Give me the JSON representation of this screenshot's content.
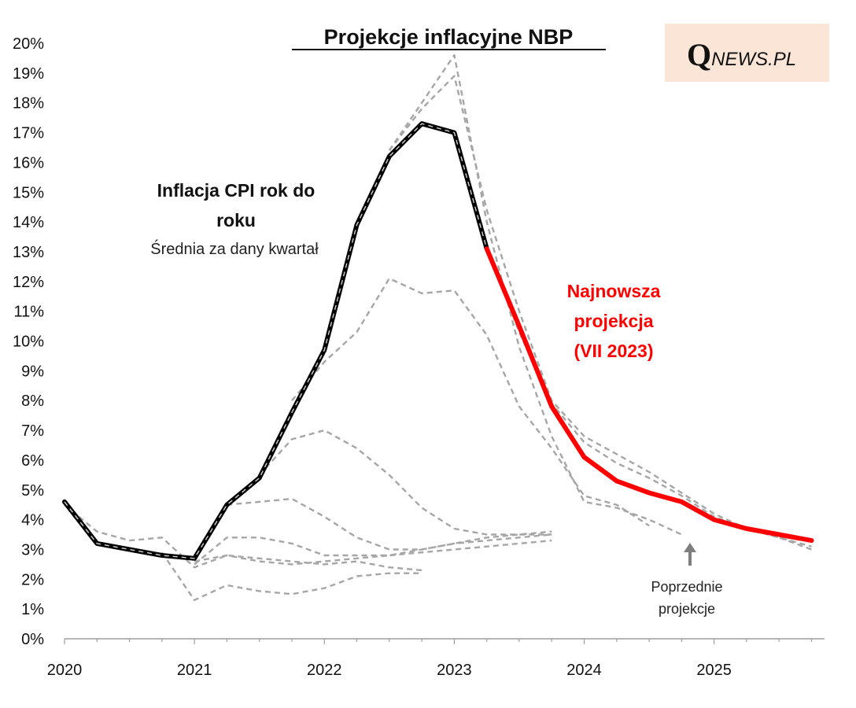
{
  "chart_data": {
    "type": "line",
    "title": "Projekcje inflacyjne NBP",
    "xlabel": "",
    "ylabel": "",
    "ylim": [
      0,
      20
    ],
    "xlim": [
      2020.0,
      2025.85
    ],
    "yticks": [
      "0%",
      "1%",
      "2%",
      "3%",
      "4%",
      "5%",
      "6%",
      "7%",
      "8%",
      "9%",
      "10%",
      "11%",
      "12%",
      "13%",
      "14%",
      "15%",
      "16%",
      "17%",
      "18%",
      "19%",
      "20%"
    ],
    "xticks": [
      {
        "label": "2020",
        "value": 2020
      },
      {
        "label": "2021",
        "value": 2021
      },
      {
        "label": "2022",
        "value": 2022
      },
      {
        "label": "2023",
        "value": 2023
      },
      {
        "label": "2024",
        "value": 2024
      },
      {
        "label": "2025",
        "value": 2025
      }
    ],
    "actual": {
      "name": "Inflacja CPI rok do roku",
      "x": [
        2020.0,
        2020.25,
        2020.5,
        2020.75,
        2021.0,
        2021.25,
        2021.5,
        2021.75,
        2022.0,
        2022.25,
        2022.5,
        2022.75,
        2023.0,
        2023.25
      ],
      "values": [
        4.6,
        3.2,
        3.0,
        2.8,
        2.7,
        4.5,
        5.4,
        7.6,
        9.7,
        13.9,
        16.2,
        17.3,
        17.0,
        13.1
      ]
    },
    "latest_projection": {
      "name": "Najnowsza projekcja (VII 2023)",
      "x": [
        2023.25,
        2023.5,
        2023.75,
        2024.0,
        2024.25,
        2024.5,
        2024.75,
        2025.0,
        2025.25,
        2025.5,
        2025.75
      ],
      "values": [
        13.1,
        10.5,
        7.8,
        6.1,
        5.3,
        4.9,
        4.6,
        4.0,
        3.7,
        3.5,
        3.3
      ]
    },
    "previous_projections": [
      {
        "x": [
          2020.0,
          2020.25,
          2020.5,
          2020.75,
          2021.0,
          2021.25,
          2021.5,
          2021.75,
          2022.0,
          2022.25,
          2022.5,
          2022.75
        ],
        "values": [
          4.5,
          3.6,
          3.3,
          3.4,
          2.4,
          2.8,
          2.7,
          2.6,
          2.5,
          2.6,
          2.4,
          2.3
        ]
      },
      {
        "x": [
          2020.75,
          2021.0,
          2021.25,
          2021.5,
          2021.75,
          2022.0,
          2022.25,
          2022.5,
          2022.75
        ],
        "values": [
          2.9,
          1.3,
          1.8,
          1.6,
          1.5,
          1.7,
          2.1,
          2.2,
          2.2
        ]
      },
      {
        "x": [
          2021.0,
          2021.25,
          2021.5,
          2021.75,
          2022.0,
          2022.25,
          2022.5,
          2022.75,
          2023.0,
          2023.25,
          2023.5,
          2023.75
        ],
        "values": [
          2.5,
          3.4,
          3.4,
          3.2,
          2.8,
          2.8,
          2.8,
          2.9,
          3.0,
          3.1,
          3.2,
          3.3
        ]
      },
      {
        "x": [
          2021.0,
          2021.25,
          2021.5,
          2021.75,
          2022.0,
          2022.25,
          2022.5,
          2022.75,
          2023.0,
          2023.25,
          2023.5,
          2023.75
        ],
        "values": [
          2.6,
          2.8,
          2.6,
          2.5,
          2.6,
          2.7,
          2.8,
          3.0,
          3.2,
          3.4,
          3.5,
          3.6
        ]
      },
      {
        "x": [
          2021.25,
          2021.5,
          2021.75,
          2022.0,
          2022.25,
          2022.5,
          2022.75,
          2023.0,
          2023.25,
          2023.5,
          2023.75
        ],
        "values": [
          4.5,
          4.6,
          4.7,
          4.1,
          3.4,
          3.0,
          3.0,
          3.2,
          3.3,
          3.4,
          3.5
        ]
      },
      {
        "x": [
          2021.5,
          2021.75,
          2022.0,
          2022.25,
          2022.5,
          2022.75,
          2023.0,
          2023.25,
          2023.5,
          2023.75
        ],
        "values": [
          5.5,
          6.7,
          7.0,
          6.4,
          5.5,
          4.4,
          3.7,
          3.5,
          3.5,
          3.5
        ]
      },
      {
        "x": [
          2021.75,
          2022.0,
          2022.25,
          2022.5,
          2022.75,
          2023.0,
          2023.25,
          2023.5,
          2023.75,
          2024.0,
          2024.25,
          2024.5
        ],
        "values": [
          8.0,
          9.3,
          10.3,
          12.1,
          11.6,
          11.7,
          10.2,
          7.8,
          6.4,
          4.8,
          4.5,
          3.8
        ]
      },
      {
        "x": [
          2022.5,
          2022.75,
          2023.0,
          2023.25,
          2023.5,
          2023.75,
          2024.0,
          2024.25,
          2024.5,
          2024.75
        ],
        "values": [
          16.4,
          18.0,
          19.6,
          14.0,
          9.8,
          6.8,
          4.6,
          4.4,
          4.0,
          3.5
        ]
      },
      {
        "x": [
          2022.5,
          2022.75,
          2023.0,
          2023.25,
          2023.5,
          2023.75,
          2024.0,
          2024.25,
          2024.5,
          2024.75,
          2025.0,
          2025.25,
          2025.5,
          2025.75
        ],
        "values": [
          16.4,
          17.8,
          18.9,
          14.4,
          11.0,
          8.0,
          6.8,
          6.2,
          5.6,
          4.9,
          4.2,
          3.7,
          3.4,
          3.0
        ]
      },
      {
        "x": [
          2023.0,
          2023.25,
          2023.5,
          2023.75,
          2024.0,
          2024.25,
          2024.5,
          2024.75,
          2025.0,
          2025.25,
          2025.5,
          2025.75
        ],
        "values": [
          16.9,
          13.2,
          10.3,
          7.9,
          6.6,
          5.9,
          5.4,
          4.8,
          4.1,
          3.7,
          3.4,
          3.1
        ]
      }
    ],
    "annotations": {
      "cpi_label_line1": "Inflacja CPI rok do",
      "cpi_label_line2": "roku",
      "cpi_sublabel": "Średnia za dany kwartał",
      "latest_line1": "Najnowsza",
      "latest_line2": "projekcja",
      "latest_line3": "(VII 2023)",
      "previous_line1": "Poprzednie",
      "previous_line2": "projekcje"
    },
    "colors": {
      "actual": "#000000",
      "latest": "#ff0000",
      "previous": "#a6a6a6",
      "logo_bg": "#fbe5d6"
    }
  },
  "logo": {
    "q": "Q",
    "rest": "NEWS.PL"
  }
}
